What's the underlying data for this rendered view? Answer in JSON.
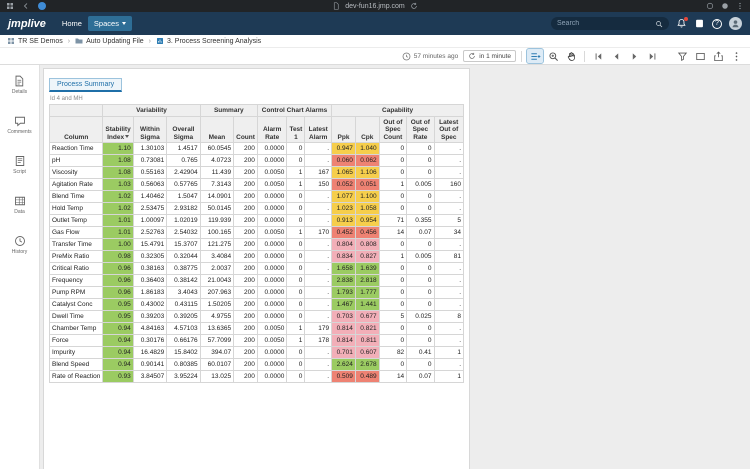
{
  "browser": {
    "url": "dev-fun16.jmp.com"
  },
  "app_header": {
    "logo": "jmplive",
    "nav_home": "Home",
    "nav_spaces": "Spaces",
    "search_placeholder": "Search",
    "help_glyph": "?"
  },
  "breadcrumb": {
    "items": [
      {
        "label": "TR SE Demos",
        "icon": "space"
      },
      {
        "label": "Auto Updating File",
        "icon": "folder"
      },
      {
        "label": "3. Process Screening Analysis",
        "icon": "report"
      }
    ]
  },
  "toolbar": {
    "updated_ago": "57 minutes ago",
    "next_refresh": "in 1 minute"
  },
  "sidebar": {
    "items": [
      {
        "label": "Details",
        "icon": "details"
      },
      {
        "label": "Comments",
        "icon": "comments"
      },
      {
        "label": "Script",
        "icon": "script"
      },
      {
        "label": "Data",
        "icon": "data"
      },
      {
        "label": "History",
        "icon": "history"
      }
    ]
  },
  "report": {
    "tab": "Process Summary",
    "note": "Id 4 and MH",
    "colors": {
      "green": "#9bcb62",
      "yellow": "#f6ce4c",
      "pink": "#f2afb8",
      "red": "#ee8273",
      "accent_blue": "#2e7db3",
      "header_navy": "#1e3a55"
    },
    "table": {
      "groups": [
        {
          "label": "",
          "span": 1
        },
        {
          "label": "Variability",
          "span": 3
        },
        {
          "label": "Summary",
          "span": 2
        },
        {
          "label": "Control Chart Alarms",
          "span": 3
        },
        {
          "label": "Capability",
          "span": 5
        }
      ],
      "columns": [
        "Column",
        "Stability Index",
        "Within Sigma",
        "Overall Sigma",
        "Mean",
        "Count",
        "Alarm Rate",
        "Test 1",
        "Latest Alarm",
        "Ppk",
        "Cpk",
        "Out of Spec Count",
        "Out of Spec Rate",
        "Latest Out of Spec"
      ],
      "sorted_by": "Stability Index",
      "rows": [
        {
          "name": "Reaction Time",
          "cells": [
            "1.10",
            "1.30103",
            "1.4517",
            "60.0545",
            "200",
            "0.0000",
            "0",
            ".",
            "0.947",
            "1.040",
            "0",
            "0",
            "."
          ],
          "c": {
            "0": "green",
            "8": "yellow",
            "9": "yellow"
          }
        },
        {
          "name": "pH",
          "cells": [
            "1.08",
            "0.73081",
            "0.765",
            "4.0723",
            "200",
            "0.0000",
            "0",
            ".",
            "0.060",
            "0.062",
            "0",
            "0",
            "."
          ],
          "c": {
            "0": "green",
            "8": "red",
            "9": "red"
          }
        },
        {
          "name": "Viscosity",
          "cells": [
            "1.08",
            "0.55163",
            "2.42904",
            "11.439",
            "200",
            "0.0050",
            "1",
            "167",
            "1.065",
            "1.106",
            "0",
            "0",
            "."
          ],
          "c": {
            "0": "green",
            "8": "yellow",
            "9": "yellow"
          }
        },
        {
          "name": "Agitation Rate",
          "cells": [
            "1.03",
            "0.56063",
            "0.57765",
            "7.3143",
            "200",
            "0.0050",
            "1",
            "150",
            "0.052",
            "0.051",
            "1",
            "0.005",
            "160"
          ],
          "c": {
            "0": "green",
            "8": "red",
            "9": "red"
          }
        },
        {
          "name": "Blend Time",
          "cells": [
            "1.02",
            "1.40462",
            "1.5047",
            "14.0901",
            "200",
            "0.0000",
            "0",
            ".",
            "1.077",
            "1.100",
            "0",
            "0",
            "."
          ],
          "c": {
            "0": "green",
            "8": "yellow",
            "9": "yellow"
          }
        },
        {
          "name": "Hold Temp",
          "cells": [
            "1.02",
            "2.53475",
            "2.93182",
            "50.0145",
            "200",
            "0.0000",
            "0",
            ".",
            "1.023",
            "1.058",
            "0",
            "0",
            "."
          ],
          "c": {
            "0": "green",
            "8": "yellow",
            "9": "yellow"
          }
        },
        {
          "name": "Outlet Temp",
          "cells": [
            "1.01",
            "1.00097",
            "1.02019",
            "119.939",
            "200",
            "0.0000",
            "0",
            ".",
            "0.913",
            "0.954",
            "71",
            "0.355",
            "5"
          ],
          "c": {
            "0": "green",
            "8": "yellow",
            "9": "yellow"
          }
        },
        {
          "name": "Gas Flow",
          "cells": [
            "1.01",
            "2.52763",
            "2.54032",
            "100.165",
            "200",
            "0.0050",
            "1",
            "170",
            "0.452",
            "0.456",
            "14",
            "0.07",
            "34"
          ],
          "c": {
            "0": "green",
            "8": "red",
            "9": "red"
          }
        },
        {
          "name": "Transfer Time",
          "cells": [
            "1.00",
            "15.4791",
            "15.3707",
            "121.275",
            "200",
            "0.0000",
            "0",
            ".",
            "0.804",
            "0.808",
            "0",
            "0",
            "."
          ],
          "c": {
            "0": "green",
            "8": "pink",
            "9": "pink"
          }
        },
        {
          "name": "PreMix Ratio",
          "cells": [
            "0.98",
            "0.32305",
            "0.32044",
            "3.4084",
            "200",
            "0.0000",
            "0",
            ".",
            "0.834",
            "0.827",
            "1",
            "0.005",
            "81"
          ],
          "c": {
            "0": "green",
            "8": "pink",
            "9": "pink"
          }
        },
        {
          "name": "Critical Ratio",
          "cells": [
            "0.96",
            "0.38163",
            "0.38775",
            "2.0037",
            "200",
            "0.0000",
            "0",
            ".",
            "1.658",
            "1.639",
            "0",
            "0",
            "."
          ],
          "c": {
            "0": "green",
            "8": "green",
            "9": "green"
          }
        },
        {
          "name": "Frequency",
          "cells": [
            "0.96",
            "0.36403",
            "0.38142",
            "21.0043",
            "200",
            "0.0000",
            "0",
            ".",
            "2.838",
            "2.818",
            "0",
            "0",
            "."
          ],
          "c": {
            "0": "green",
            "8": "green",
            "9": "green"
          }
        },
        {
          "name": "Pump RPM",
          "cells": [
            "0.96",
            "1.86183",
            "3.4043",
            "207.963",
            "200",
            "0.0000",
            "0",
            ".",
            "1.793",
            "1.777",
            "0",
            "0",
            "."
          ],
          "c": {
            "0": "green",
            "8": "green",
            "9": "green"
          }
        },
        {
          "name": "Catalyst Conc",
          "cells": [
            "0.95",
            "0.43002",
            "0.43115",
            "1.50205",
            "200",
            "0.0000",
            "0",
            ".",
            "1.467",
            "1.441",
            "0",
            "0",
            "."
          ],
          "c": {
            "0": "green",
            "8": "green",
            "9": "green"
          }
        },
        {
          "name": "Dwell Time",
          "cells": [
            "0.95",
            "0.39203",
            "0.39205",
            "4.9755",
            "200",
            "0.0000",
            "0",
            ".",
            "0.703",
            "0.677",
            "5",
            "0.025",
            "8"
          ],
          "c": {
            "0": "green",
            "8": "pink",
            "9": "pink"
          }
        },
        {
          "name": "Chamber Temp",
          "cells": [
            "0.94",
            "4.84163",
            "4.57103",
            "13.6365",
            "200",
            "0.0050",
            "1",
            "179",
            "0.814",
            "0.821",
            "0",
            "0",
            "."
          ],
          "c": {
            "0": "green",
            "8": "pink",
            "9": "pink"
          }
        },
        {
          "name": "Force",
          "cells": [
            "0.94",
            "0.30176",
            "0.66176",
            "57.7099",
            "200",
            "0.0050",
            "1",
            "178",
            "0.814",
            "0.811",
            "0",
            "0",
            "."
          ],
          "c": {
            "0": "green",
            "8": "pink",
            "9": "pink"
          }
        },
        {
          "name": "Impurity",
          "cells": [
            "0.94",
            "16.4829",
            "15.8402",
            "394.07",
            "200",
            "0.0000",
            "0",
            ".",
            "0.701",
            "0.607",
            "82",
            "0.41",
            "1"
          ],
          "c": {
            "0": "green",
            "8": "pink",
            "9": "pink"
          }
        },
        {
          "name": "Blend Speed",
          "cells": [
            "0.94",
            "0.90141",
            "0.80385",
            "60.0107",
            "200",
            "0.0000",
            "0",
            ".",
            "2.624",
            "2.678",
            "0",
            "0",
            "."
          ],
          "c": {
            "0": "green",
            "8": "green",
            "9": "green"
          }
        },
        {
          "name": "Rate of Reaction",
          "cells": [
            "0.93",
            "3.84507",
            "3.95224",
            "13.025",
            "200",
            "0.0000",
            "0",
            ".",
            "0.509",
            "0.489",
            "14",
            "0.07",
            "1"
          ],
          "c": {
            "0": "green",
            "8": "red",
            "9": "red"
          }
        }
      ]
    }
  }
}
